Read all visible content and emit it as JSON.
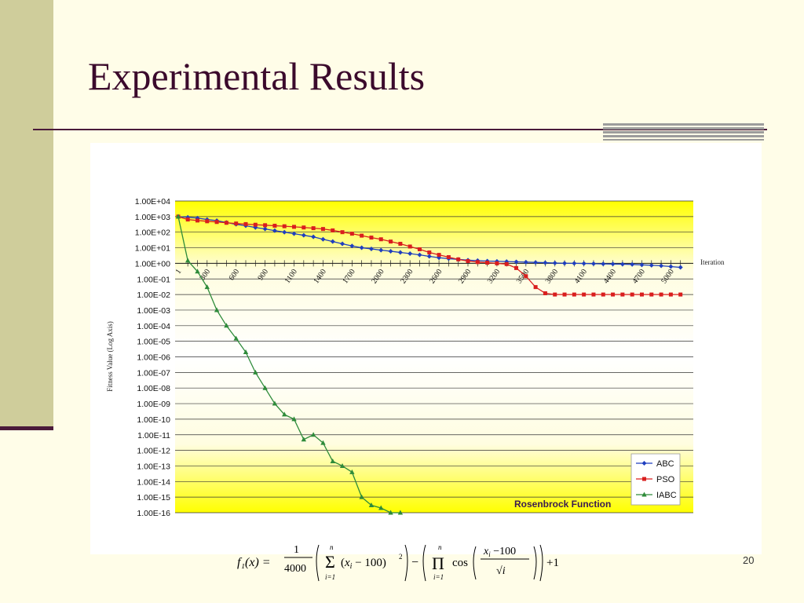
{
  "slide": {
    "title": "Experimental Results",
    "page_number": "20"
  },
  "colors": {
    "title": "#3b0a2c",
    "side_bar": "#cfcd9b",
    "rule": "#4a1a3a",
    "plot_bg_top": "#ffff00",
    "plot_bg_mid": "#fffbe0",
    "abc": "#1f3fbf",
    "pso": "#d91e1e",
    "iabc": "#2e8b3a"
  },
  "formula": {
    "lhs": "f₁(x) =",
    "text": "f1(x) = 1/4000 ( Σ_{i=1}^{n} (x_i − 100)^2 ) − ( Π_{i=1}^{n} cos((x_i − 100)/√i) ) + 1"
  },
  "chart_data": {
    "type": "line",
    "title": "Rosenbrock Function",
    "xlabel": "Iteration",
    "ylabel": "Fitness Value (Log Axis)",
    "y_scale": "log",
    "ylim": [
      1e-16,
      10000.0
    ],
    "y_ticks": [
      "1.00E+04",
      "1.00E+03",
      "1.00E+02",
      "1.00E+01",
      "1.00E+00",
      "1.00E-01",
      "1.00E-02",
      "1.00E-03",
      "1.00E-04",
      "1.00E-05",
      "1.00E-06",
      "1.00E-07",
      "1.00E-08",
      "1.00E-09",
      "1.00E-10",
      "1.00E-11",
      "1.00E-12",
      "1.00E-13",
      "1.00E-14",
      "1.00E-15",
      "1.00E-16"
    ],
    "x_tick_labels": [
      "1",
      "300",
      "600",
      "900",
      "1100",
      "1400",
      "1700",
      "2000",
      "2300",
      "2600",
      "2900",
      "3200",
      "3500",
      "3800",
      "4100",
      "4400",
      "4700",
      "5000"
    ],
    "x_axis_crosses_at": 1,
    "legend_position": "bottom-right",
    "grid": true,
    "series": [
      {
        "name": "ABC",
        "marker": "diamond",
        "x": [
          1,
          100,
          200,
          300,
          400,
          500,
          600,
          700,
          800,
          900,
          1000,
          1100,
          1200,
          1300,
          1400,
          1500,
          1600,
          1700,
          1800,
          1900,
          2000,
          2100,
          2200,
          2300,
          2400,
          2500,
          2600,
          2700,
          2800,
          2900,
          3000,
          3100,
          3200,
          3300,
          3400,
          3500,
          3600,
          3700,
          3800,
          3900,
          4000,
          4100,
          4200,
          4300,
          4400,
          4500,
          4600,
          4700,
          4800,
          4900,
          5000,
          5100,
          5200
        ],
        "y": [
          1000,
          900,
          800,
          650,
          550,
          420,
          320,
          260,
          200,
          160,
          125,
          100,
          80,
          63,
          50,
          35,
          25,
          18,
          13,
          10,
          8.5,
          7,
          6,
          5,
          4.2,
          3.5,
          2.8,
          2.3,
          2,
          1.8,
          1.6,
          1.5,
          1.4,
          1.35,
          1.3,
          1.25,
          1.2,
          1.15,
          1.1,
          1.05,
          1.02,
          1,
          0.98,
          0.95,
          0.92,
          0.9,
          0.88,
          0.85,
          0.8,
          0.75,
          0.7,
          0.62,
          0.55
        ]
      },
      {
        "name": "PSO",
        "marker": "square",
        "x": [
          1,
          100,
          200,
          300,
          400,
          500,
          600,
          700,
          800,
          900,
          1000,
          1100,
          1200,
          1300,
          1400,
          1500,
          1600,
          1700,
          1800,
          1900,
          2000,
          2100,
          2200,
          2300,
          2400,
          2500,
          2600,
          2700,
          2800,
          2900,
          3000,
          3100,
          3200,
          3300,
          3400,
          3500,
          3600,
          3700,
          3800,
          3900,
          4000,
          4100,
          4200,
          4300,
          4400,
          4500,
          4600,
          4700,
          4800,
          4900,
          5000,
          5100,
          5200
        ],
        "y": [
          1000,
          650,
          560,
          500,
          450,
          400,
          360,
          330,
          300,
          280,
          260,
          240,
          220,
          200,
          180,
          160,
          130,
          100,
          80,
          60,
          45,
          35,
          25,
          18,
          12,
          8,
          5,
          3.5,
          2.5,
          1.8,
          1.4,
          1.2,
          1.1,
          1.0,
          0.9,
          0.5,
          0.15,
          0.03,
          0.012,
          0.01,
          0.01,
          0.01,
          0.01,
          0.01,
          0.01,
          0.01,
          0.01,
          0.01,
          0.01,
          0.01,
          0.01,
          0.01,
          0.01
        ]
      },
      {
        "name": "IABC",
        "marker": "triangle",
        "x": [
          1,
          100,
          200,
          300,
          400,
          500,
          600,
          700,
          800,
          900,
          1000,
          1100,
          1200,
          1300,
          1400,
          1500,
          1600,
          1700,
          1800,
          1900,
          2000,
          2100,
          2200,
          2300
        ],
        "y": [
          1000,
          1.5,
          0.3,
          0.03,
          0.001,
          0.0001,
          1.5e-05,
          2e-06,
          1e-07,
          1e-08,
          1e-09,
          2e-10,
          1e-10,
          5e-12,
          1e-11,
          3e-12,
          2e-13,
          1e-13,
          4e-14,
          1e-15,
          3e-16,
          2e-16,
          1e-16,
          1e-16
        ]
      }
    ]
  }
}
